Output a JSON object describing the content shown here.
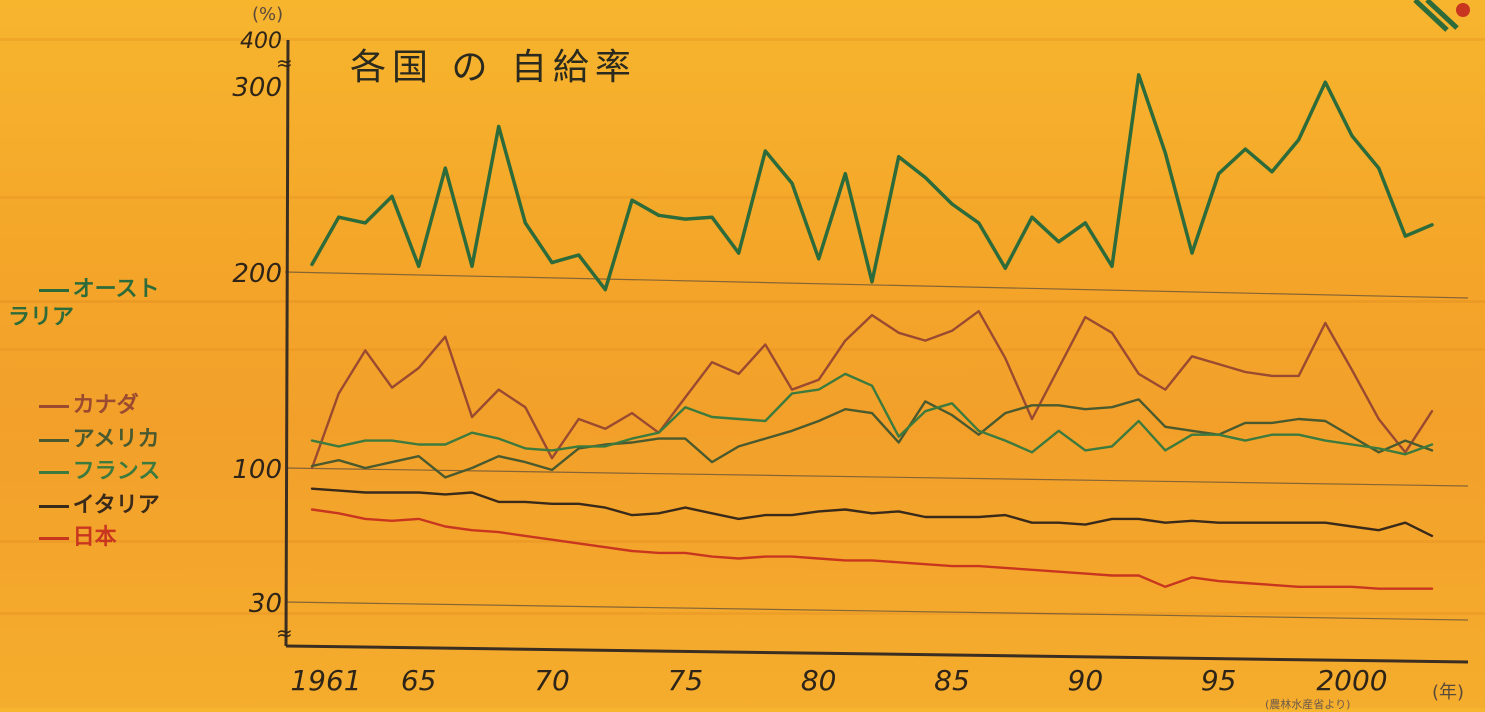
{
  "page": {
    "title": "各国 の 自給率",
    "unit_top": "(%)",
    "unit_year": "(年)",
    "source": "(農林水産省より)"
  },
  "legend": [
    {
      "label": "オースト\nラリア",
      "color": "#2e6b3a"
    },
    {
      "label": "カナダ",
      "color": "#9a4a30"
    },
    {
      "label": "アメリカ",
      "color": "#4a5a2e"
    },
    {
      "label": "フランス",
      "color": "#3d7a3d"
    },
    {
      "label": "イタリア",
      "color": "#3a2a1a"
    },
    {
      "label": "日本",
      "color": "#c8361f"
    }
  ],
  "chart_data": {
    "type": "line",
    "title": "各国 の 自給率",
    "xlabel": "(年)",
    "ylabel": "(%)",
    "y_ticks": [
      "30",
      "100",
      "200",
      "300",
      "400"
    ],
    "x_ticks": [
      "1961",
      "65",
      "70",
      "75",
      "80",
      "85",
      "90",
      "95",
      "2000"
    ],
    "x": [
      1961,
      1962,
      1963,
      1964,
      1965,
      1966,
      1967,
      1968,
      1969,
      1970,
      1971,
      1972,
      1973,
      1974,
      1975,
      1976,
      1977,
      1978,
      1979,
      1980,
      1981,
      1982,
      1983,
      1984,
      1985,
      1986,
      1987,
      1988,
      1989,
      1990,
      1991,
      1992,
      1993,
      1994,
      1995,
      1996,
      1997,
      1998,
      1999,
      2000,
      2001,
      2002,
      2003
    ],
    "y_scale": "piecewise (30–100, 100–200, 200–300, 300–400 bands)",
    "series": [
      {
        "name": "オーストラリア",
        "color": "#2e6b3a",
        "values": [
          204,
          229,
          226,
          240,
          203,
          255,
          203,
          277,
          226,
          205,
          209,
          191,
          238,
          230,
          228,
          229,
          210,
          264,
          247,
          207,
          252,
          195,
          261,
          250,
          236,
          226,
          202,
          229,
          216,
          226,
          203,
          320,
          263,
          210,
          252,
          265,
          253,
          270,
          302,
          272,
          255,
          219,
          225
        ]
      },
      {
        "name": "カナダ",
        "color": "#9a4a30",
        "values": [
          100,
          138,
          160,
          141,
          151,
          167,
          126,
          140,
          131,
          105,
          125,
          120,
          128,
          118,
          136,
          154,
          148,
          163,
          140,
          145,
          165,
          178,
          169,
          165,
          170,
          180,
          156,
          125,
          151,
          177,
          169,
          148,
          140,
          157,
          153,
          149,
          147,
          147,
          174,
          150,
          125,
          108,
          129
        ]
      },
      {
        "name": "アメリカ",
        "color": "#4a5a2e",
        "values": [
          101,
          104,
          100,
          103,
          106,
          95,
          100,
          106,
          103,
          99,
          110,
          112,
          113,
          115,
          115,
          103,
          111,
          115,
          119,
          124,
          130,
          128,
          113,
          134,
          127,
          117,
          128,
          132,
          132,
          130,
          131,
          135,
          121,
          119,
          117,
          123,
          123,
          125,
          124,
          116,
          108,
          114,
          109
        ]
      },
      {
        "name": "フランス",
        "color": "#3d7a3d",
        "values": [
          114,
          111,
          114,
          114,
          112,
          112,
          118,
          115,
          110,
          109,
          111,
          111,
          115,
          118,
          131,
          126,
          125,
          124,
          138,
          140,
          148,
          142,
          116,
          129,
          133,
          119,
          114,
          108,
          119,
          109,
          111,
          124,
          109,
          117,
          117,
          114,
          117,
          117,
          114,
          112,
          110,
          107,
          112
        ]
      },
      {
        "name": "イタリア",
        "color": "#3a2a1a",
        "values": [
          89,
          88,
          87,
          87,
          87,
          86,
          87,
          82,
          82,
          81,
          81,
          79,
          75,
          76,
          79,
          76,
          73,
          75,
          75,
          77,
          78,
          76,
          77,
          74,
          74,
          74,
          75,
          71,
          71,
          70,
          73,
          73,
          71,
          72,
          71,
          71,
          71,
          71,
          71,
          69,
          67,
          71,
          64
        ]
      },
      {
        "name": "日本",
        "color": "#c8361f",
        "values": [
          78,
          76,
          73,
          72,
          73,
          69,
          67,
          66,
          64,
          62,
          60,
          58,
          56,
          55,
          55,
          53,
          52,
          53,
          53,
          52,
          51,
          51,
          50,
          49,
          48,
          48,
          47,
          46,
          45,
          44,
          43,
          43,
          37,
          42,
          40,
          39,
          38,
          37,
          37,
          37,
          36,
          36,
          36
        ]
      }
    ]
  }
}
